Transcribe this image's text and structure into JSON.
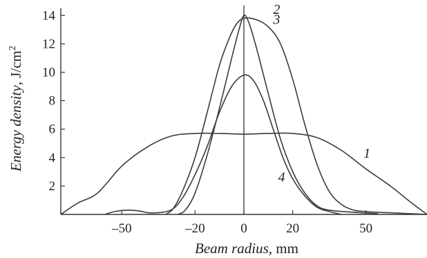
{
  "chart_data": {
    "type": "line",
    "ylabel_italic": "Energy density",
    "ylabel_unit": ", J/cm",
    "ylabel_sup": "2",
    "xlabel_italic": "Beam radius",
    "xlabel_unit": ", mm",
    "xlim": [
      -75,
      75
    ],
    "ylim": [
      0,
      14.5
    ],
    "x_ticks": [
      -50,
      -20,
      0,
      20,
      50
    ],
    "x_tick_labels": [
      "–50",
      "–20",
      "0",
      "20",
      "50"
    ],
    "y_ticks": [
      2,
      4,
      6,
      8,
      10,
      12,
      14
    ],
    "y_tick_labels": [
      "2",
      "4",
      "6",
      "8",
      "10",
      "12",
      "14"
    ],
    "grid": false,
    "vertical_reference_line_x": 0,
    "series": [
      {
        "name": "1",
        "label_at": [
          49,
          4.0
        ],
        "points": [
          [
            -75,
            0
          ],
          [
            -68,
            0.8
          ],
          [
            -60,
            1.5
          ],
          [
            -50,
            3.4
          ],
          [
            -40,
            4.7
          ],
          [
            -30,
            5.5
          ],
          [
            -20,
            5.7
          ],
          [
            -10,
            5.7
          ],
          [
            0,
            5.65
          ],
          [
            10,
            5.7
          ],
          [
            20,
            5.7
          ],
          [
            30,
            5.4
          ],
          [
            40,
            4.5
          ],
          [
            50,
            3.2
          ],
          [
            60,
            2.0
          ],
          [
            68,
            0.9
          ],
          [
            75,
            0
          ]
        ]
      },
      {
        "name": "2",
        "label_at": [
          12,
          14.1
        ],
        "points": [
          [
            -32,
            0
          ],
          [
            -29,
            0.4
          ],
          [
            -25,
            1.7
          ],
          [
            -20,
            4.0
          ],
          [
            -15,
            7.2
          ],
          [
            -10,
            10.5
          ],
          [
            -6,
            12.4
          ],
          [
            -3,
            13.4
          ],
          [
            0,
            13.8
          ],
          [
            5,
            13.7
          ],
          [
            10,
            13.2
          ],
          [
            15,
            12.0
          ],
          [
            20,
            9.5
          ],
          [
            25,
            6.3
          ],
          [
            30,
            3.5
          ],
          [
            35,
            1.6
          ],
          [
            40,
            0.7
          ],
          [
            45,
            0.3
          ],
          [
            50,
            0.2
          ],
          [
            55,
            0.15
          ],
          [
            62,
            0.1
          ],
          [
            75,
            0
          ]
        ]
      },
      {
        "name": "3",
        "label_at": [
          12,
          13.4
        ],
        "points": [
          [
            -27,
            0
          ],
          [
            -24,
            0.3
          ],
          [
            -20,
            1.5
          ],
          [
            -15,
            4.2
          ],
          [
            -10,
            7.5
          ],
          [
            -5,
            11.0
          ],
          [
            -2,
            13.0
          ],
          [
            0,
            14.0
          ],
          [
            2,
            13.5
          ],
          [
            5,
            11.8
          ],
          [
            10,
            8.5
          ],
          [
            15,
            5.3
          ],
          [
            20,
            3.0
          ],
          [
            25,
            1.5
          ],
          [
            30,
            0.6
          ],
          [
            35,
            0.3
          ],
          [
            45,
            0.15
          ],
          [
            55,
            0.05
          ]
        ]
      },
      {
        "name": "4",
        "label_at": [
          14,
          2.3
        ],
        "points": [
          [
            -57,
            0
          ],
          [
            -53,
            0.2
          ],
          [
            -48,
            0.3
          ],
          [
            -43,
            0.25
          ],
          [
            -38,
            0.1
          ],
          [
            -30,
            0.3
          ],
          [
            -25,
            1.2
          ],
          [
            -20,
            2.8
          ],
          [
            -15,
            4.8
          ],
          [
            -10,
            7.2
          ],
          [
            -5,
            9.0
          ],
          [
            0,
            9.8
          ],
          [
            4,
            9.4
          ],
          [
            8,
            8.0
          ],
          [
            12,
            6.0
          ],
          [
            16,
            4.0
          ],
          [
            20,
            2.5
          ],
          [
            25,
            1.3
          ],
          [
            30,
            0.5
          ],
          [
            35,
            0.2
          ],
          [
            40,
            0
          ]
        ]
      }
    ]
  }
}
